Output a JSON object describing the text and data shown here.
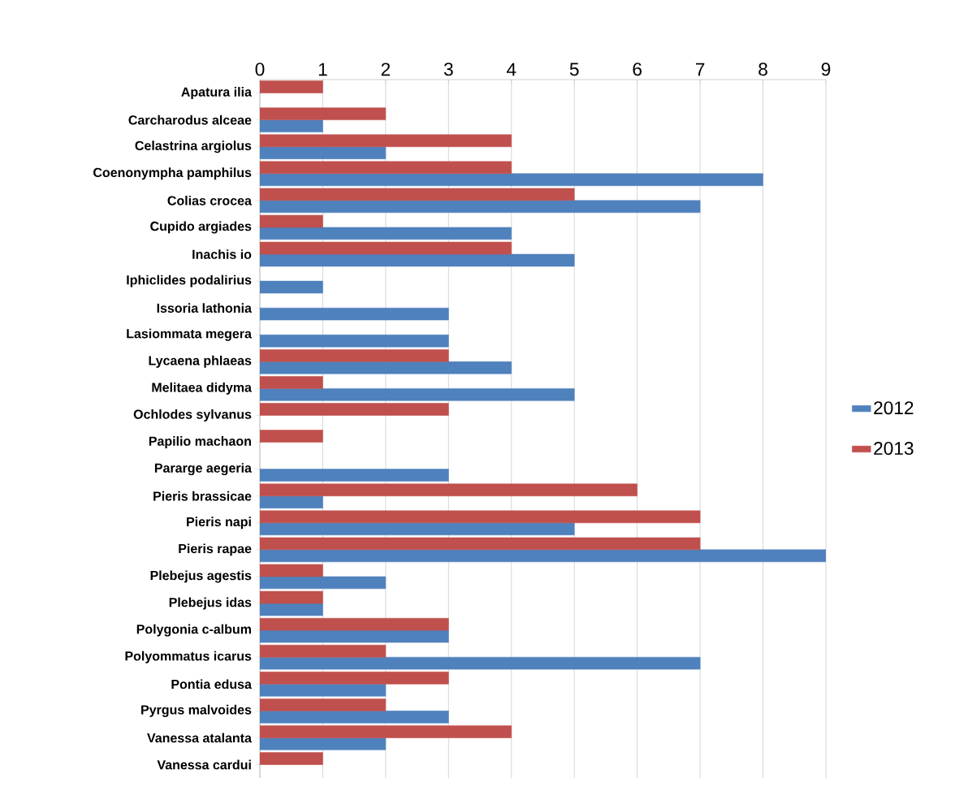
{
  "chart_data": {
    "type": "bar",
    "orientation": "horizontal",
    "categories": [
      "Apatura ilia",
      "Carcharodus alceae",
      "Celastrina argiolus",
      "Coenonympha pamphilus",
      "Colias crocea",
      "Cupido argiades",
      "Inachis io",
      "Iphiclides podalirius",
      "Issoria lathonia",
      "Lasiommata megera",
      "Lycaena phlaeas",
      "Melitaea didyma",
      "Ochlodes sylvanus",
      "Papilio machaon",
      "Pararge aegeria",
      "Pieris brassicae",
      "Pieris napi",
      "Pieris rapae",
      "Plebejus agestis",
      "Plebejus idas",
      "Polygonia c-album",
      "Polyommatus icarus",
      "Pontia edusa",
      "Pyrgus malvoides",
      "Vanessa atalanta",
      "Vanessa cardui"
    ],
    "series": [
      {
        "name": "2012",
        "color": "#4f81bd",
        "values": [
          null,
          1,
          2,
          8,
          7,
          4,
          5,
          1,
          3,
          3,
          4,
          5,
          null,
          null,
          3,
          1,
          5,
          9,
          2,
          1,
          3,
          7,
          2,
          3,
          2,
          null
        ]
      },
      {
        "name": "2013",
        "color": "#c0504d",
        "values": [
          1,
          2,
          4,
          4,
          5,
          1,
          4,
          null,
          null,
          null,
          3,
          1,
          3,
          1,
          null,
          6,
          7,
          7,
          1,
          1,
          3,
          2,
          3,
          2,
          4,
          1
        ]
      }
    ],
    "xlim": [
      0,
      9
    ],
    "xticks": [
      0,
      1,
      2,
      3,
      4,
      5,
      6,
      7,
      8,
      9
    ],
    "grid": "x",
    "legend": "right"
  }
}
